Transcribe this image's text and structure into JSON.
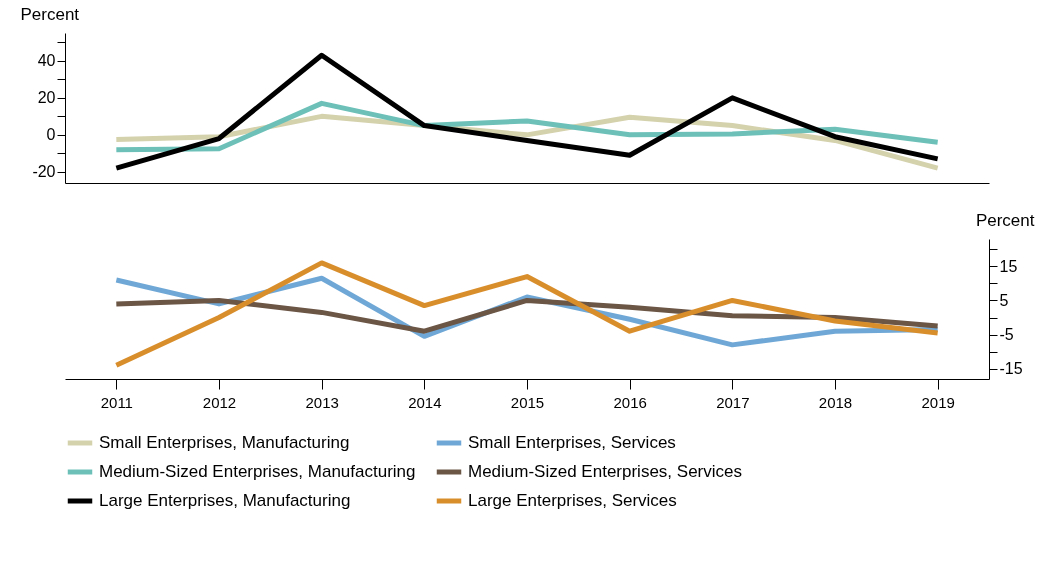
{
  "chart_data": [
    {
      "type": "line",
      "ylabel": "Percent",
      "categories": [
        "2011",
        "2012",
        "2013",
        "2014",
        "2015",
        "2016",
        "2017",
        "2018",
        "2019"
      ],
      "ylim": [
        -26,
        55
      ],
      "yticks": [
        {
          "value": -20,
          "label": "-20"
        },
        {
          "value": -10,
          "label": null
        },
        0,
        {
          "value": 10,
          "label": null
        },
        20,
        {
          "value": 30,
          "label": null
        },
        40,
        {
          "value": 50,
          "label": null
        }
      ],
      "tick_labels": "y",
      "legend": "bottom",
      "grid": false,
      "series": [
        {
          "name": "Small Enterprises, Manufacturing",
          "color": "#d4d1ad",
          "values": [
            -2.5,
            -1,
            10,
            5,
            0,
            9.5,
            5,
            -3,
            -18
          ]
        },
        {
          "name": "Medium-Sized Enterprises, Manufacturing",
          "color": "#6cc0b8",
          "values": [
            -8,
            -7.5,
            17,
            5,
            7.5,
            0,
            0.5,
            3,
            -4
          ]
        },
        {
          "name": "Large Enterprises, Manufacturing",
          "color": "#000000",
          "values": [
            -18,
            -2,
            43,
            5,
            -3,
            -11,
            20,
            -1,
            -13
          ]
        }
      ]
    },
    {
      "type": "line",
      "ylabel": "Percent",
      "categories": [
        "2011",
        "2012",
        "2013",
        "2014",
        "2015",
        "2016",
        "2017",
        "2018",
        "2019"
      ],
      "ylim": [
        -18,
        23
      ],
      "yticks": [
        {
          "value": -15,
          "label": "-15"
        },
        {
          "value": -10,
          "label": null
        },
        {
          "value": -5,
          "label": "-5"
        },
        {
          "value": 0,
          "label": null
        },
        5,
        {
          "value": 10,
          "label": null
        },
        15,
        {
          "value": 20,
          "label": null
        }
      ],
      "legend": "bottom",
      "grid": false,
      "series": [
        {
          "name": "Small Enterprises, Services",
          "color": "#6fa8d6",
          "values": [
            11,
            4,
            11.5,
            -5.5,
            6,
            -0.5,
            -8,
            -4,
            -3.5
          ]
        },
        {
          "name": "Medium-Sized Enterprises, Services",
          "color": "#6b5545",
          "values": [
            4,
            5,
            1.5,
            -4,
            5,
            3,
            0.5,
            0,
            -2.5
          ]
        },
        {
          "name": "Large Enterprises, Services",
          "color": "#d98e2c",
          "values": [
            -14,
            0,
            16,
            3.5,
            12,
            -4,
            5,
            -1,
            -4.5
          ]
        }
      ]
    }
  ]
}
